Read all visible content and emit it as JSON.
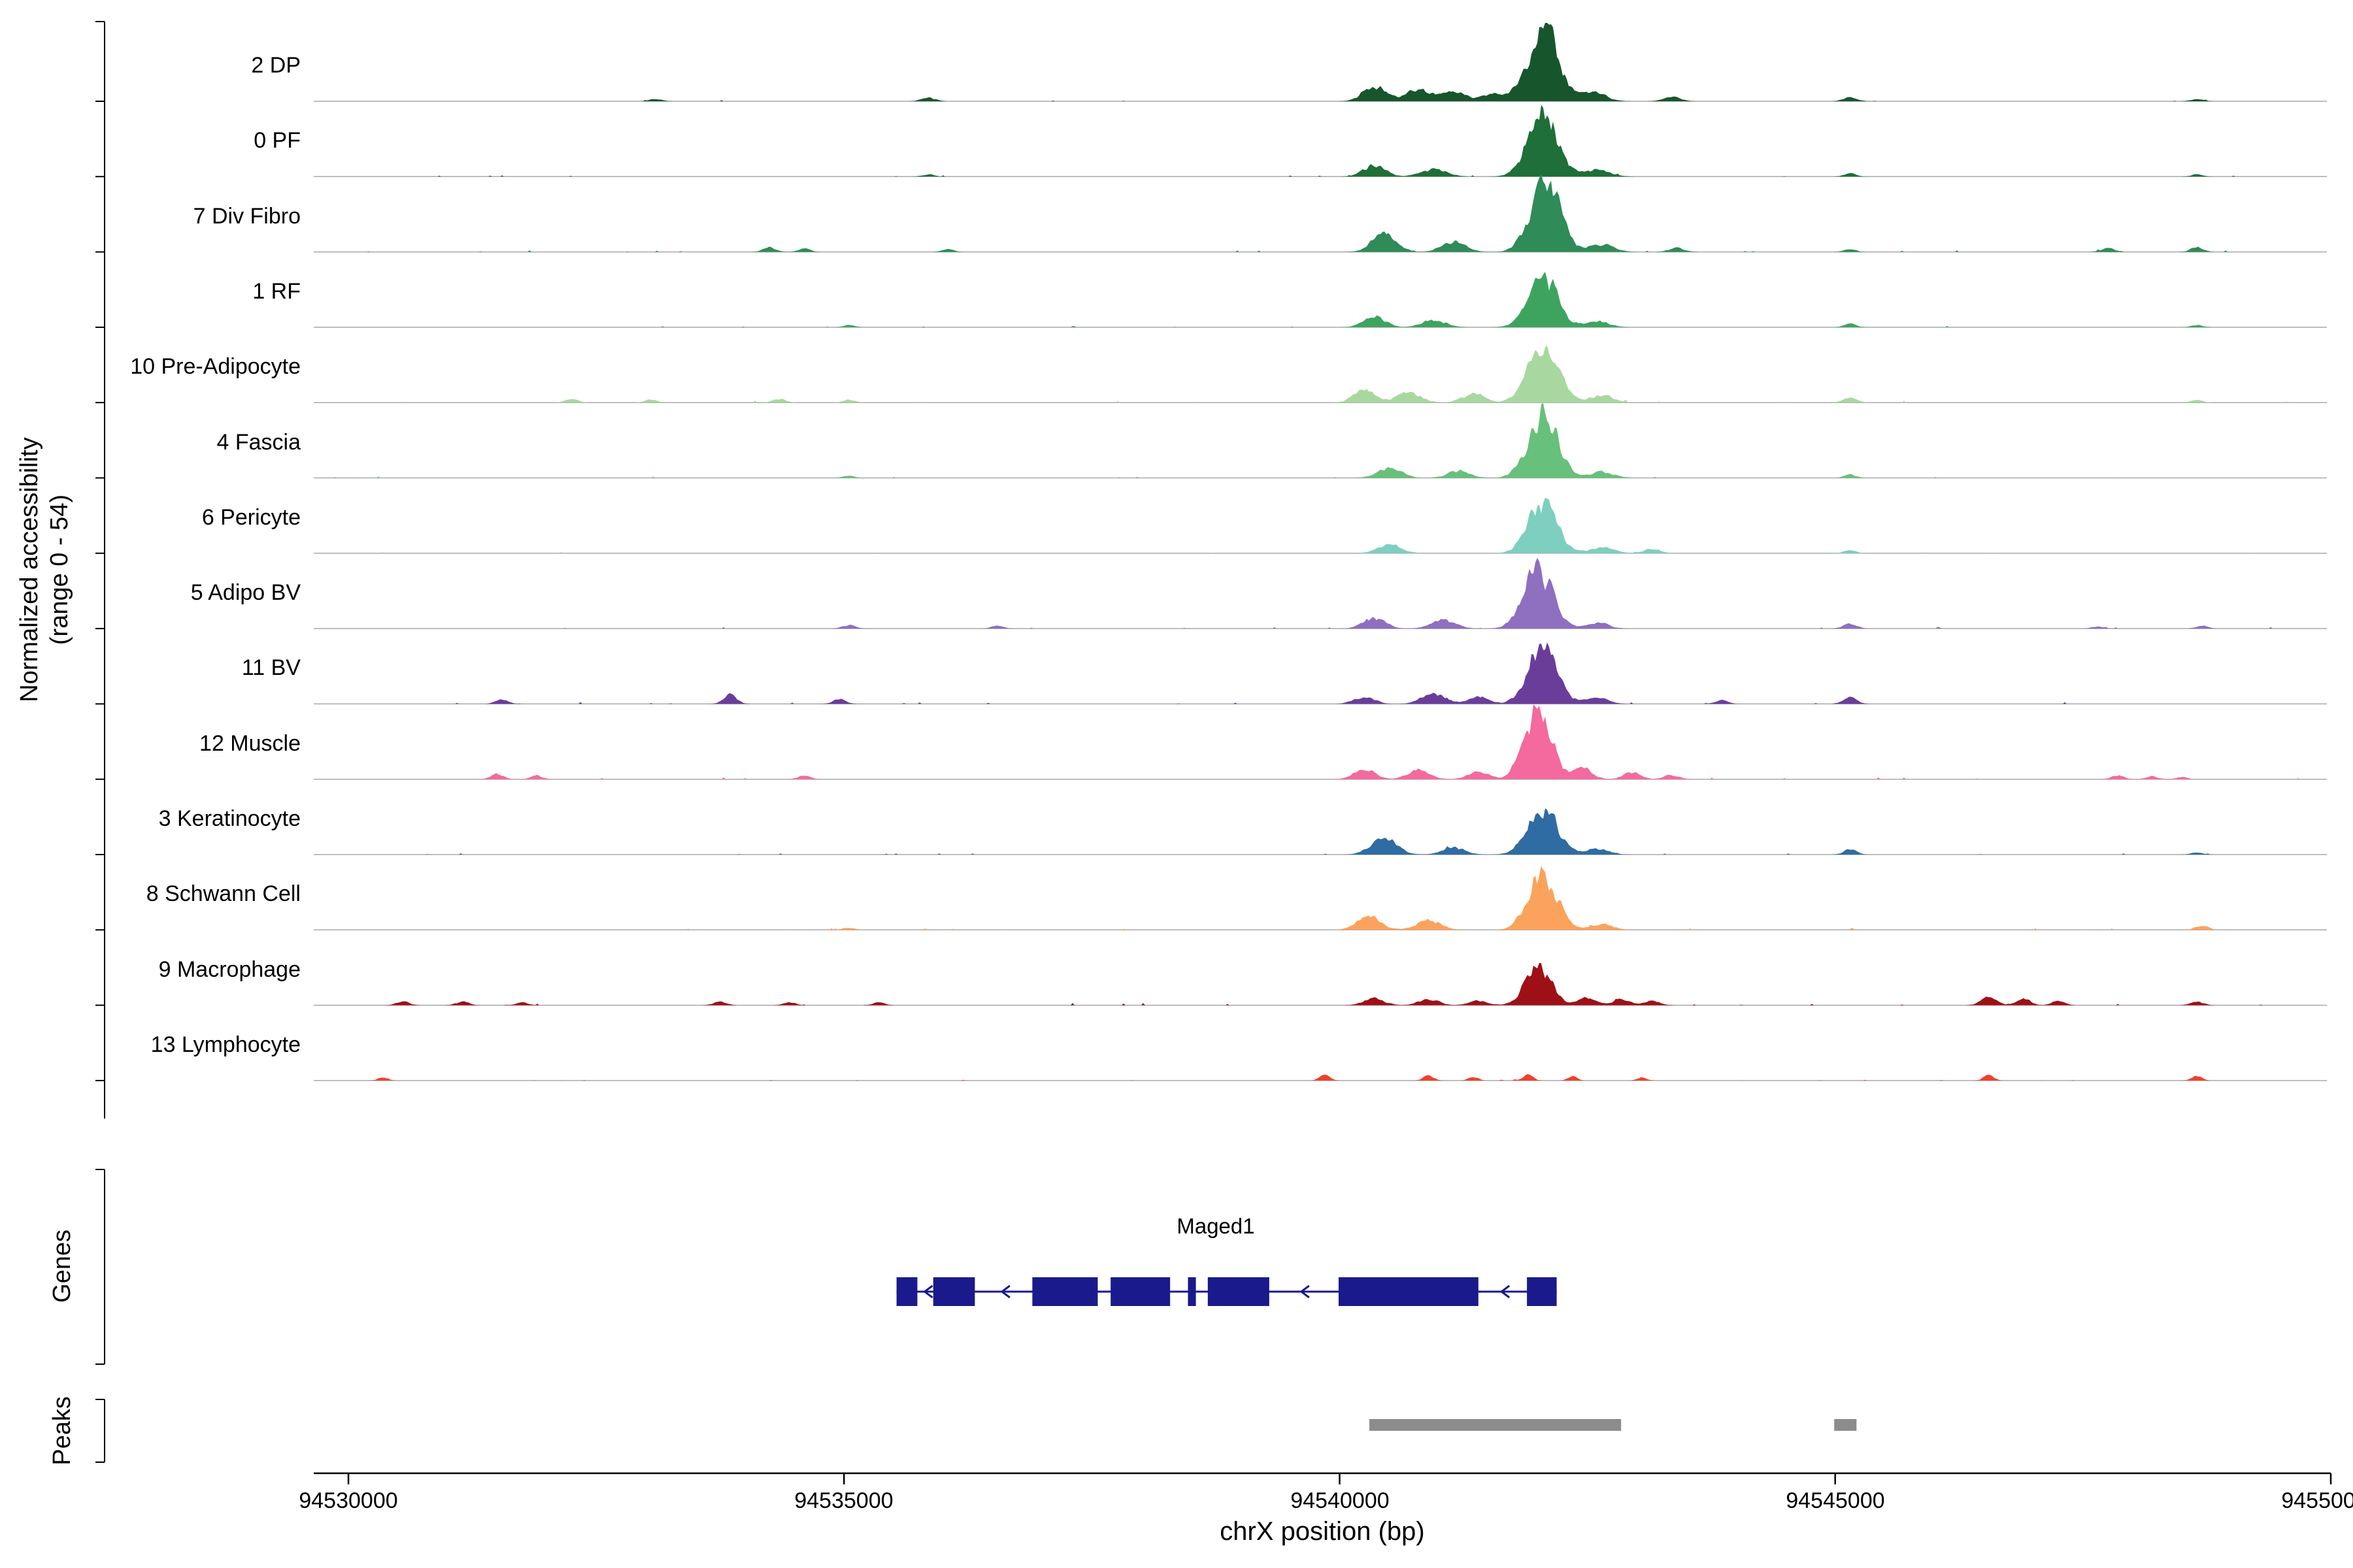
{
  "figure": {
    "y_axis": {
      "label_line1": "Normalized accessibility",
      "label_line2": "(range 0 - 54)"
    },
    "genes_label": "Genes",
    "peaks_label": "Peaks",
    "x_axis": {
      "title": "chrX position (bp)",
      "ticks": [
        94530000,
        94535000,
        94540000,
        94545000,
        94550000
      ],
      "tick_labels": [
        "94530000",
        "94535000",
        "94540000",
        "94545000",
        "94550000"
      ]
    }
  },
  "chart_data": {
    "type": "area",
    "description": "Normalized chromatin accessibility signal tracks per cell-type cluster over chrX:94529650-94550000, with gene model and called peaks",
    "chromosome": "chrX",
    "x_domain": [
      94529650,
      94550000
    ],
    "y_range": [
      0,
      54
    ],
    "peak_format": "[center_bp, height_0_to_54, fwhm_bp]",
    "tracks": [
      {
        "label": "2 DP",
        "color": "#17562c",
        "noise": 0.5,
        "peaks": [
          [
            94540350,
            11,
            260
          ],
          [
            94540800,
            8,
            300
          ],
          [
            94541150,
            7,
            260
          ],
          [
            94541550,
            5,
            260
          ],
          [
            94542050,
            50,
            360
          ],
          [
            94542550,
            6,
            300
          ],
          [
            94543350,
            3,
            200
          ],
          [
            94535850,
            2.5,
            160
          ],
          [
            94533100,
            1.5,
            150
          ],
          [
            94545150,
            3,
            160
          ],
          [
            94548650,
            1.5,
            150
          ]
        ]
      },
      {
        "label": "0 PF",
        "color": "#1e6f38",
        "noise": 0.5,
        "peaks": [
          [
            94540350,
            8,
            260
          ],
          [
            94540950,
            5,
            300
          ],
          [
            94542050,
            44,
            350
          ],
          [
            94542600,
            4.5,
            300
          ],
          [
            94535850,
            1.5,
            140
          ],
          [
            94545150,
            2.5,
            140
          ],
          [
            94548650,
            1.5,
            140
          ]
        ]
      },
      {
        "label": "7 Div Fibro",
        "color": "#2f8b57",
        "noise": 0.6,
        "peaks": [
          [
            94540450,
            13,
            280
          ],
          [
            94541150,
            7,
            280
          ],
          [
            94542080,
            48,
            350
          ],
          [
            94542650,
            5,
            280
          ],
          [
            94543400,
            3,
            180
          ],
          [
            94534250,
            3,
            150
          ],
          [
            94534600,
            2.5,
            140
          ],
          [
            94536050,
            2,
            140
          ],
          [
            94545150,
            2,
            140
          ],
          [
            94547750,
            3,
            150
          ],
          [
            94548650,
            3,
            150
          ]
        ]
      },
      {
        "label": "1 RF",
        "color": "#3da45f",
        "noise": 0.5,
        "peaks": [
          [
            94540350,
            7,
            260
          ],
          [
            94540950,
            5,
            280
          ],
          [
            94542050,
            36,
            340
          ],
          [
            94542600,
            4,
            280
          ],
          [
            94535050,
            1.5,
            140
          ],
          [
            94545150,
            2.5,
            140
          ],
          [
            94548650,
            1.5,
            140
          ]
        ]
      },
      {
        "label": "10 Pre-Adipocyte",
        "color": "#a8d8a0",
        "noise": 0.7,
        "peaks": [
          [
            94540250,
            9,
            250
          ],
          [
            94540700,
            7,
            280
          ],
          [
            94541350,
            6,
            260
          ],
          [
            94542050,
            40,
            350
          ],
          [
            94542650,
            5,
            280
          ],
          [
            94532250,
            2.5,
            150
          ],
          [
            94533050,
            2,
            140
          ],
          [
            94534350,
            2.5,
            150
          ],
          [
            94535050,
            2,
            140
          ],
          [
            94545150,
            3.5,
            160
          ],
          [
            94548650,
            2,
            140
          ]
        ]
      },
      {
        "label": "4 Fascia",
        "color": "#67c07b",
        "noise": 0.5,
        "peaks": [
          [
            94540500,
            7,
            280
          ],
          [
            94541200,
            5,
            260
          ],
          [
            94542050,
            42,
            350
          ],
          [
            94542650,
            4,
            280
          ],
          [
            94535050,
            1.5,
            140
          ],
          [
            94545150,
            2.5,
            140
          ]
        ]
      },
      {
        "label": "6 Pericyte",
        "color": "#7ecfc0",
        "noise": 0.4,
        "peaks": [
          [
            94540500,
            6,
            280
          ],
          [
            94542050,
            34,
            340
          ],
          [
            94542650,
            4,
            280
          ],
          [
            94543150,
            3,
            200
          ],
          [
            94545150,
            2,
            140
          ]
        ]
      },
      {
        "label": "5 Adipo BV",
        "color": "#8e6fc0",
        "noise": 0.6,
        "peaks": [
          [
            94540350,
            7,
            260
          ],
          [
            94541050,
            6,
            280
          ],
          [
            94542000,
            40,
            340
          ],
          [
            94542600,
            4,
            260
          ],
          [
            94535050,
            2.5,
            150
          ],
          [
            94536550,
            2,
            140
          ],
          [
            94545150,
            3.5,
            160
          ],
          [
            94547650,
            1.5,
            140
          ],
          [
            94548700,
            2,
            140
          ]
        ]
      },
      {
        "label": "11 BV",
        "color": "#6a3d9a",
        "noise": 0.7,
        "peaks": [
          [
            94540250,
            5,
            240
          ],
          [
            94540950,
            7,
            280
          ],
          [
            94541400,
            5,
            240
          ],
          [
            94542050,
            40,
            340
          ],
          [
            94542600,
            4,
            260
          ],
          [
            94531550,
            3,
            150
          ],
          [
            94533850,
            6,
            160
          ],
          [
            94534950,
            3.5,
            150
          ],
          [
            94543850,
            2.5,
            150
          ],
          [
            94545150,
            4,
            160
          ]
        ]
      },
      {
        "label": "12 Muscle",
        "color": "#f4699e",
        "noise": 0.8,
        "peaks": [
          [
            94540250,
            7,
            240
          ],
          [
            94540800,
            6,
            260
          ],
          [
            94541400,
            5,
            240
          ],
          [
            94542000,
            46,
            320
          ],
          [
            94542450,
            8,
            220
          ],
          [
            94542950,
            5,
            200
          ],
          [
            94543350,
            3,
            180
          ],
          [
            94531500,
            3.5,
            150
          ],
          [
            94531900,
            2.5,
            140
          ],
          [
            94534600,
            2.5,
            140
          ],
          [
            94547850,
            2.5,
            150
          ],
          [
            94548200,
            2,
            140
          ],
          [
            94548500,
            1.5,
            130
          ]
        ]
      },
      {
        "label": "3 Keratinocyte",
        "color": "#2f6ca3",
        "noise": 0.5,
        "peaks": [
          [
            94540450,
            11,
            300
          ],
          [
            94541150,
            5,
            260
          ],
          [
            94542050,
            33,
            340
          ],
          [
            94542600,
            4,
            260
          ],
          [
            94545150,
            3.5,
            150
          ],
          [
            94548650,
            1.5,
            140
          ]
        ]
      },
      {
        "label": "8 Schwann Cell",
        "color": "#fba35c",
        "noise": 0.6,
        "peaks": [
          [
            94540300,
            9,
            280
          ],
          [
            94540900,
            7,
            280
          ],
          [
            94542050,
            38,
            340
          ],
          [
            94542650,
            4,
            260
          ],
          [
            94535050,
            1.5,
            140
          ],
          [
            94548700,
            3,
            150
          ]
        ]
      },
      {
        "label": "9 Macrophage",
        "color": "#9e1016",
        "noise": 0.8,
        "peaks": [
          [
            94540350,
            4.5,
            240
          ],
          [
            94540900,
            4,
            240
          ],
          [
            94541400,
            3,
            220
          ],
          [
            94542000,
            27,
            300
          ],
          [
            94542500,
            5,
            220
          ],
          [
            94542850,
            4,
            200
          ],
          [
            94543150,
            3,
            180
          ],
          [
            94530550,
            2.5,
            150
          ],
          [
            94531150,
            2.5,
            150
          ],
          [
            94531750,
            2,
            140
          ],
          [
            94533750,
            2.5,
            150
          ],
          [
            94534450,
            2,
            140
          ],
          [
            94535350,
            2,
            140
          ],
          [
            94546550,
            6,
            180
          ],
          [
            94546900,
            4.5,
            160
          ],
          [
            94547250,
            3,
            150
          ],
          [
            94548650,
            2.5,
            150
          ]
        ]
      },
      {
        "label": "13 Lymphocyte",
        "color": "#f0402a",
        "noise": 0.3,
        "peaks": [
          [
            94530350,
            2.5,
            110
          ],
          [
            94539850,
            4.5,
            120
          ],
          [
            94540900,
            3.5,
            120
          ],
          [
            94541350,
            2.5,
            110
          ],
          [
            94541900,
            4,
            120
          ],
          [
            94542350,
            3,
            110
          ],
          [
            94543050,
            2,
            110
          ],
          [
            94546550,
            3.5,
            120
          ],
          [
            94548650,
            3.5,
            120
          ]
        ]
      }
    ],
    "gene": {
      "name": "Maged1",
      "strand": "-",
      "start": 94535530,
      "end": 94542190,
      "color": "#1a1a8c",
      "exons": [
        [
          94535530,
          94535740
        ],
        [
          94535900,
          94536320
        ],
        [
          94536900,
          94537560
        ],
        [
          94537690,
          94538290
        ],
        [
          94538470,
          94538550
        ],
        [
          94538670,
          94539290
        ],
        [
          94539990,
          94541400
        ],
        [
          94541890,
          94542190
        ]
      ],
      "arrow_positions": [
        94535820,
        94536600,
        94539620,
        94541640
      ]
    },
    "peak_regions": [
      [
        94540300,
        94542840
      ],
      [
        94544990,
        94545215
      ]
    ],
    "peak_color": "#8c8c8c"
  }
}
